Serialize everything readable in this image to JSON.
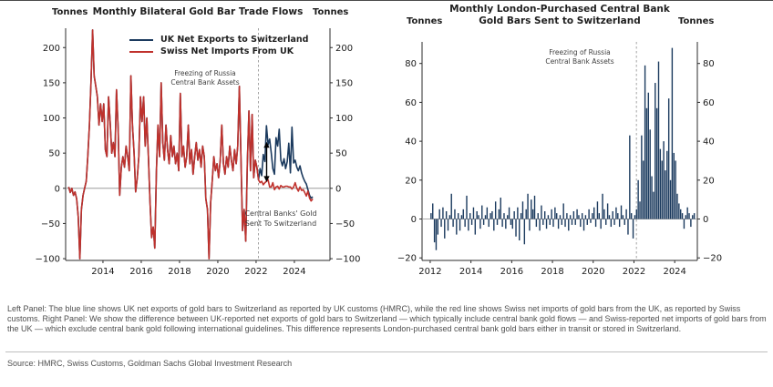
{
  "colors": {
    "navy": "#1b3a5e",
    "red": "#c0312c",
    "spine": "#2b2b2b",
    "tick_text": "#1a1a1a",
    "dashed_line": "#9a9a9a",
    "zero_line": "#8c8c8c",
    "arrow": "#000000"
  },
  "footer": {
    "note": "Left Panel: The blue line shows UK net exports of gold bars to Switzerland as reported by UK customs (HMRC), while the red line shows Swiss net imports of gold bars from the UK, as reported by Swiss customs. Right Panel: We show the difference between UK-reported net exports of gold bars to Switzerland — which typically include central bank gold flows — and Swiss-reported net imports of gold bars from the UK — which exclude central bank gold following international guidelines. This difference represents London-purchased central bank gold bars either in transit or stored in Switzerland.",
    "source": "Source: HMRC, Swiss Customs, Goldman Sachs Global Investment Research"
  },
  "chart_data": [
    {
      "type": "line",
      "title": "Monthly Bilateral Gold Bar Trade Flows",
      "unit_left": "Tonnes",
      "unit_right": "Tonnes",
      "xlim": [
        2012.05,
        2025.86
      ],
      "ylim": [
        -102.5,
        227.5
      ],
      "x_ticks": [
        2014,
        2016,
        2018,
        2020,
        2022,
        2024
      ],
      "y_ticks": [
        200,
        150,
        100,
        50,
        0,
        -50,
        -100
      ],
      "event_line_x": 2022.12,
      "annotations": {
        "freeze_line1": "Freezing of Russia",
        "freeze_line2": "Central Bank Assets",
        "cb_line1": "Central Banks' Gold",
        "cb_line2": "Sent To Switzerland"
      },
      "x_start": 2012.2083,
      "x_step": 0.0833333,
      "series": [
        {
          "name": "UK Net Exports to Switzerland",
          "color": "#1b3a5e",
          "values": [
            2,
            -6,
            0,
            -10,
            -5,
            -15,
            -40,
            -100,
            -30,
            -10,
            0,
            10,
            45,
            90,
            150,
            225,
            160,
            145,
            130,
            90,
            120,
            95,
            120,
            55,
            45,
            130,
            95,
            50,
            65,
            45,
            140,
            85,
            -10,
            30,
            45,
            30,
            60,
            45,
            25,
            160,
            90,
            50,
            -5,
            15,
            45,
            130,
            95,
            130,
            60,
            100,
            45,
            -20,
            -70,
            -55,
            -85,
            25,
            90,
            45,
            150,
            65,
            40,
            90,
            55,
            35,
            75,
            45,
            60,
            35,
            50,
            25,
            135,
            45,
            60,
            30,
            45,
            90,
            35,
            55,
            20,
            45,
            65,
            40,
            55,
            30,
            60,
            45,
            -15,
            -30,
            -100,
            -20,
            10,
            45,
            25,
            35,
            15,
            40,
            90,
            35,
            20,
            45,
            30,
            60,
            40,
            25,
            55,
            35,
            60,
            145,
            45,
            -60,
            -30,
            -75,
            35,
            110,
            25,
            105,
            15,
            40,
            30,
            12,
            28,
            18,
            48,
            38,
            89,
            62,
            70,
            50,
            28,
            20,
            72,
            60,
            84,
            40,
            32,
            42,
            28,
            38,
            64,
            22,
            87,
            36,
            40,
            30,
            25,
            32,
            22,
            15,
            10,
            6,
            -2,
            -10,
            -14,
            -12
          ]
        },
        {
          "name": "Swiss Net Imports From UK",
          "color": "#c0312c",
          "values": [
            2,
            -6,
            0,
            -10,
            -5,
            -15,
            -40,
            -100,
            -30,
            -10,
            0,
            10,
            45,
            90,
            150,
            225,
            160,
            145,
            130,
            90,
            120,
            95,
            120,
            55,
            45,
            130,
            95,
            50,
            65,
            45,
            140,
            85,
            -10,
            30,
            45,
            30,
            60,
            45,
            25,
            160,
            90,
            50,
            -5,
            15,
            45,
            130,
            95,
            130,
            60,
            100,
            45,
            -20,
            -70,
            -55,
            -85,
            25,
            90,
            45,
            150,
            65,
            40,
            90,
            55,
            35,
            75,
            45,
            60,
            35,
            50,
            25,
            135,
            45,
            60,
            30,
            45,
            90,
            35,
            55,
            20,
            45,
            65,
            40,
            55,
            30,
            60,
            45,
            -15,
            -30,
            -100,
            -20,
            10,
            45,
            25,
            35,
            15,
            40,
            90,
            35,
            20,
            45,
            30,
            60,
            40,
            25,
            55,
            35,
            60,
            145,
            45,
            -60,
            -30,
            -75,
            35,
            110,
            25,
            105,
            15,
            40,
            30,
            12,
            8,
            10,
            5,
            8,
            10,
            12,
            2,
            2,
            8,
            -2,
            2,
            3,
            -1,
            4,
            2,
            2,
            3,
            3,
            2,
            2,
            -1,
            2,
            8,
            0,
            -4,
            2,
            -3,
            -2,
            -6,
            -11,
            -4,
            -14,
            -18,
            -15
          ]
        }
      ]
    },
    {
      "type": "bar",
      "title": "Monthly London-Purchased Central Bank Gold Bars Sent to Switzerland",
      "title_line1": "Monthly London-Purchased Central Bank",
      "title_line2": "Gold Bars Sent to Switzerland",
      "unit_left": "Tonnes",
      "unit_right": "Tonnes",
      "xlim": [
        2011.6,
        2025.11
      ],
      "ylim": [
        -21.3,
        91.1
      ],
      "x_ticks": [
        2012,
        2014,
        2016,
        2018,
        2020,
        2022,
        2024
      ],
      "y_ticks": [
        80,
        60,
        40,
        20,
        0,
        -20
      ],
      "event_line_x": 2022.12,
      "annotations": {
        "freeze_line1": "Freezing of Russia",
        "freeze_line2": "Central Bank Assets"
      },
      "x_start": 2012.042,
      "x_step": 0.0833333,
      "bar_color": "#1b3a5e",
      "values": [
        3,
        8,
        -12,
        -16,
        -8,
        5,
        -4,
        6,
        -10,
        4,
        -6,
        2,
        13,
        -4,
        5,
        -8,
        3,
        -6,
        2,
        5,
        -4,
        12,
        -6,
        3,
        -3,
        6,
        -8,
        4,
        2,
        -5,
        7,
        -3,
        2,
        6,
        -4,
        3,
        4,
        -6,
        9,
        -3,
        5,
        11,
        -4,
        3,
        -5,
        2,
        6,
        -3,
        -5,
        4,
        -9,
        6,
        -11,
        3,
        9,
        -13,
        5,
        13,
        -6,
        10,
        5,
        12,
        -4,
        3,
        -6,
        7,
        -3,
        4,
        -5,
        2,
        -3,
        5,
        -4,
        6,
        3,
        -5,
        2,
        -3,
        8,
        -4,
        3,
        -6,
        2,
        -3,
        4,
        -3,
        5,
        2,
        -4,
        3,
        -6,
        2,
        -3,
        5,
        -2,
        3,
        6,
        -4,
        9,
        3,
        -5,
        13,
        5,
        -3,
        8,
        2,
        -4,
        4,
        -3,
        6,
        3,
        -4,
        7,
        2,
        -3,
        5,
        -8,
        43,
        3,
        -10,
        2,
        5,
        20,
        9,
        43,
        30,
        79,
        57,
        65,
        46,
        22,
        14,
        70,
        57,
        81,
        36,
        30,
        40,
        25,
        35,
        62,
        20,
        88,
        34,
        30,
        13,
        8,
        5,
        3,
        -5,
        2,
        6,
        3,
        -4,
        2,
        3
      ]
    }
  ]
}
